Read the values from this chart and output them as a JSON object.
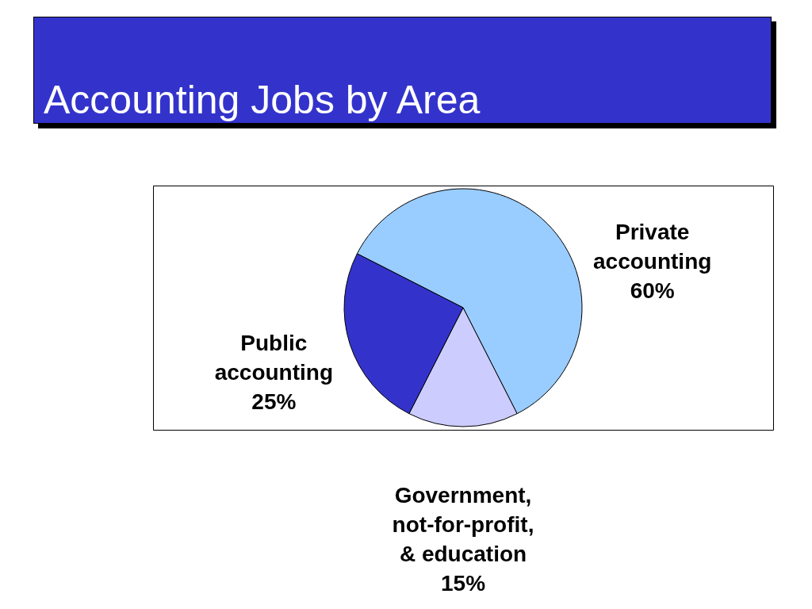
{
  "chart_data": {
    "type": "pie",
    "title": "Accounting Jobs by Area",
    "categories": [
      "Private accounting",
      "Government, not-for-profit, & education",
      "Public accounting"
    ],
    "values": [
      60,
      15,
      25
    ],
    "colors": [
      "#99ccff",
      "#ccccff",
      "#3333cc"
    ],
    "value_labels": [
      "60%",
      "15%",
      "25%"
    ]
  }
}
